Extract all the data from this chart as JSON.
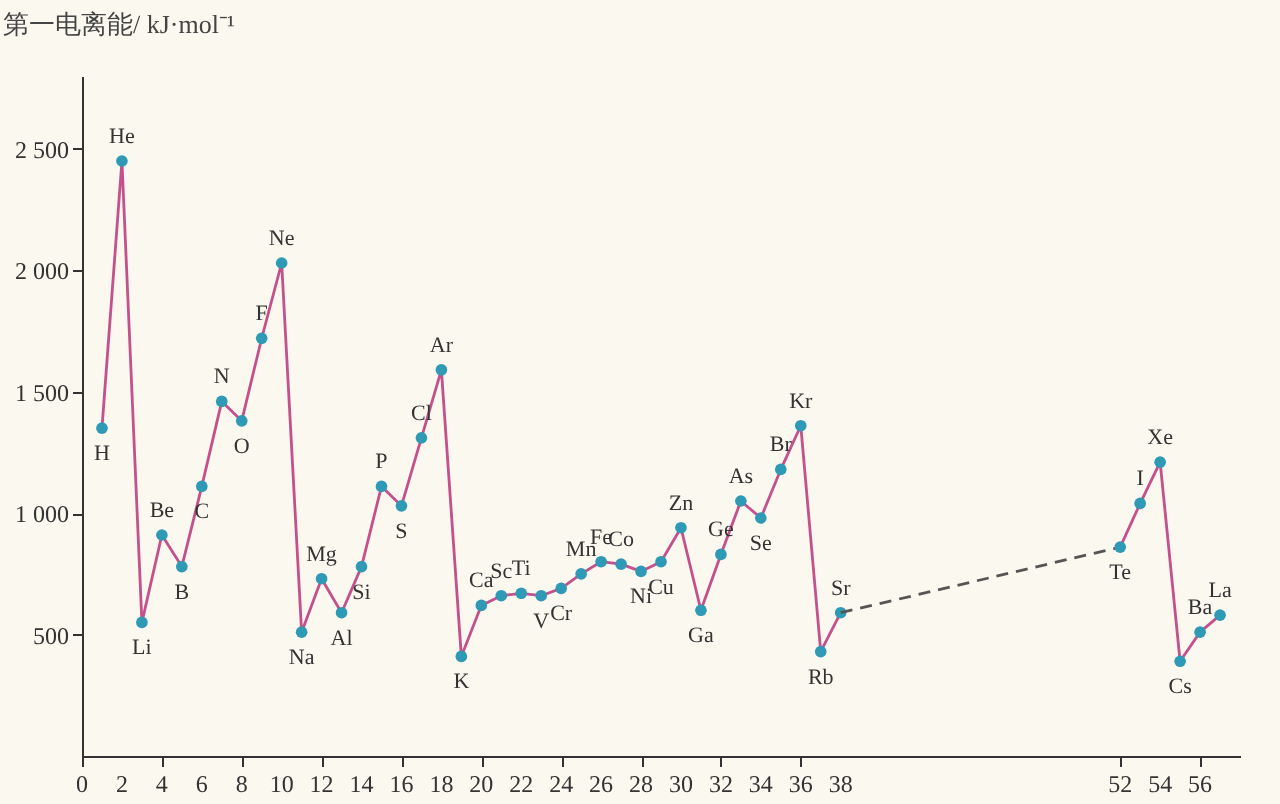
{
  "chart_data": {
    "type": "line",
    "ylabel": "第一电离能/ kJ·mol⁻¹",
    "xlim": [
      0,
      58
    ],
    "ylim": [
      0,
      2800
    ],
    "xticks": [
      0,
      2,
      4,
      6,
      8,
      10,
      12,
      14,
      16,
      18,
      20,
      22,
      24,
      26,
      28,
      30,
      32,
      34,
      36,
      38,
      52,
      54,
      56
    ],
    "yticks": [
      500,
      {
        "value": 1000,
        "label": "1 000"
      },
      {
        "value": 1500,
        "label": "1 500"
      },
      {
        "value": 2000,
        "label": "2 000"
      },
      {
        "value": 2500,
        "label": "2 500"
      }
    ],
    "grid": false,
    "line_style": "solid",
    "series": [
      {
        "color": "#c4508c",
        "marker": "circle",
        "x": [
          1,
          2,
          3,
          4,
          5,
          6,
          7,
          8,
          9,
          10,
          11,
          12,
          13,
          14,
          15,
          16,
          17,
          18,
          19,
          20,
          21,
          22,
          23,
          24,
          25,
          26,
          27,
          28,
          29,
          30,
          31,
          32,
          33,
          34,
          35,
          36,
          37,
          38
        ],
        "values": [
          1350,
          2450,
          550,
          910,
          780,
          1110,
          1460,
          1380,
          1720,
          2030,
          510,
          730,
          590,
          780,
          1110,
          1030,
          1310,
          1590,
          410,
          620,
          660,
          670,
          660,
          690,
          750,
          800,
          790,
          760,
          800,
          940,
          600,
          830,
          1050,
          980,
          1180,
          1360,
          430,
          590
        ]
      },
      {
        "color": "#555555",
        "line_style": "dashed",
        "x": [
          38,
          52
        ],
        "values": [
          590,
          860
        ]
      },
      {
        "color": "#c4508c",
        "marker": "circle",
        "x": [
          52,
          53,
          54,
          55,
          56,
          57
        ],
        "values": [
          860,
          1040,
          1210,
          390,
          510,
          580
        ]
      }
    ],
    "annotations": [
      {
        "text": "H",
        "x": 1,
        "y": 1350
      },
      {
        "text": "He",
        "x": 2,
        "y": 2450
      },
      {
        "text": "Li",
        "x": 3,
        "y": 550
      },
      {
        "text": "Be",
        "x": 4,
        "y": 910
      },
      {
        "text": "B",
        "x": 5,
        "y": 780
      },
      {
        "text": "C",
        "x": 6,
        "y": 1110
      },
      {
        "text": "N",
        "x": 7,
        "y": 1460
      },
      {
        "text": "O",
        "x": 8,
        "y": 1380
      },
      {
        "text": "F",
        "x": 9,
        "y": 1720
      },
      {
        "text": "Ne",
        "x": 10,
        "y": 2030
      },
      {
        "text": "Na",
        "x": 11,
        "y": 510
      },
      {
        "text": "Mg",
        "x": 12,
        "y": 730
      },
      {
        "text": "Al",
        "x": 13,
        "y": 590
      },
      {
        "text": "Si",
        "x": 14,
        "y": 780
      },
      {
        "text": "P",
        "x": 15,
        "y": 1110
      },
      {
        "text": "S",
        "x": 16,
        "y": 1030
      },
      {
        "text": "Cl",
        "x": 17,
        "y": 1310
      },
      {
        "text": "Ar",
        "x": 18,
        "y": 1590
      },
      {
        "text": "K",
        "x": 19,
        "y": 410
      },
      {
        "text": "Ca",
        "x": 20,
        "y": 620
      },
      {
        "text": "Sc",
        "x": 21,
        "y": 660
      },
      {
        "text": "Ti",
        "x": 22,
        "y": 670
      },
      {
        "text": "V",
        "x": 23,
        "y": 660
      },
      {
        "text": "Cr",
        "x": 24,
        "y": 690
      },
      {
        "text": "Mn",
        "x": 25,
        "y": 750
      },
      {
        "text": "Fe",
        "x": 26,
        "y": 800
      },
      {
        "text": "Co",
        "x": 27,
        "y": 790
      },
      {
        "text": "Ni",
        "x": 28,
        "y": 760
      },
      {
        "text": "Cu",
        "x": 29,
        "y": 800
      },
      {
        "text": "Zn",
        "x": 30,
        "y": 940
      },
      {
        "text": "Ga",
        "x": 31,
        "y": 600
      },
      {
        "text": "Ge",
        "x": 32,
        "y": 830
      },
      {
        "text": "As",
        "x": 33,
        "y": 1050
      },
      {
        "text": "Se",
        "x": 34,
        "y": 980
      },
      {
        "text": "Br",
        "x": 35,
        "y": 1180
      },
      {
        "text": "Kr",
        "x": 36,
        "y": 1360
      },
      {
        "text": "Rb",
        "x": 37,
        "y": 430
      },
      {
        "text": "Sr",
        "x": 38,
        "y": 590
      },
      {
        "text": "Te",
        "x": 52,
        "y": 860
      },
      {
        "text": "I",
        "x": 53,
        "y": 1040
      },
      {
        "text": "Xe",
        "x": 54,
        "y": 1210
      },
      {
        "text": "Cs",
        "x": 55,
        "y": 390
      },
      {
        "text": "Ba",
        "x": 56,
        "y": 510
      },
      {
        "text": "La",
        "x": 57,
        "y": 580
      }
    ]
  }
}
